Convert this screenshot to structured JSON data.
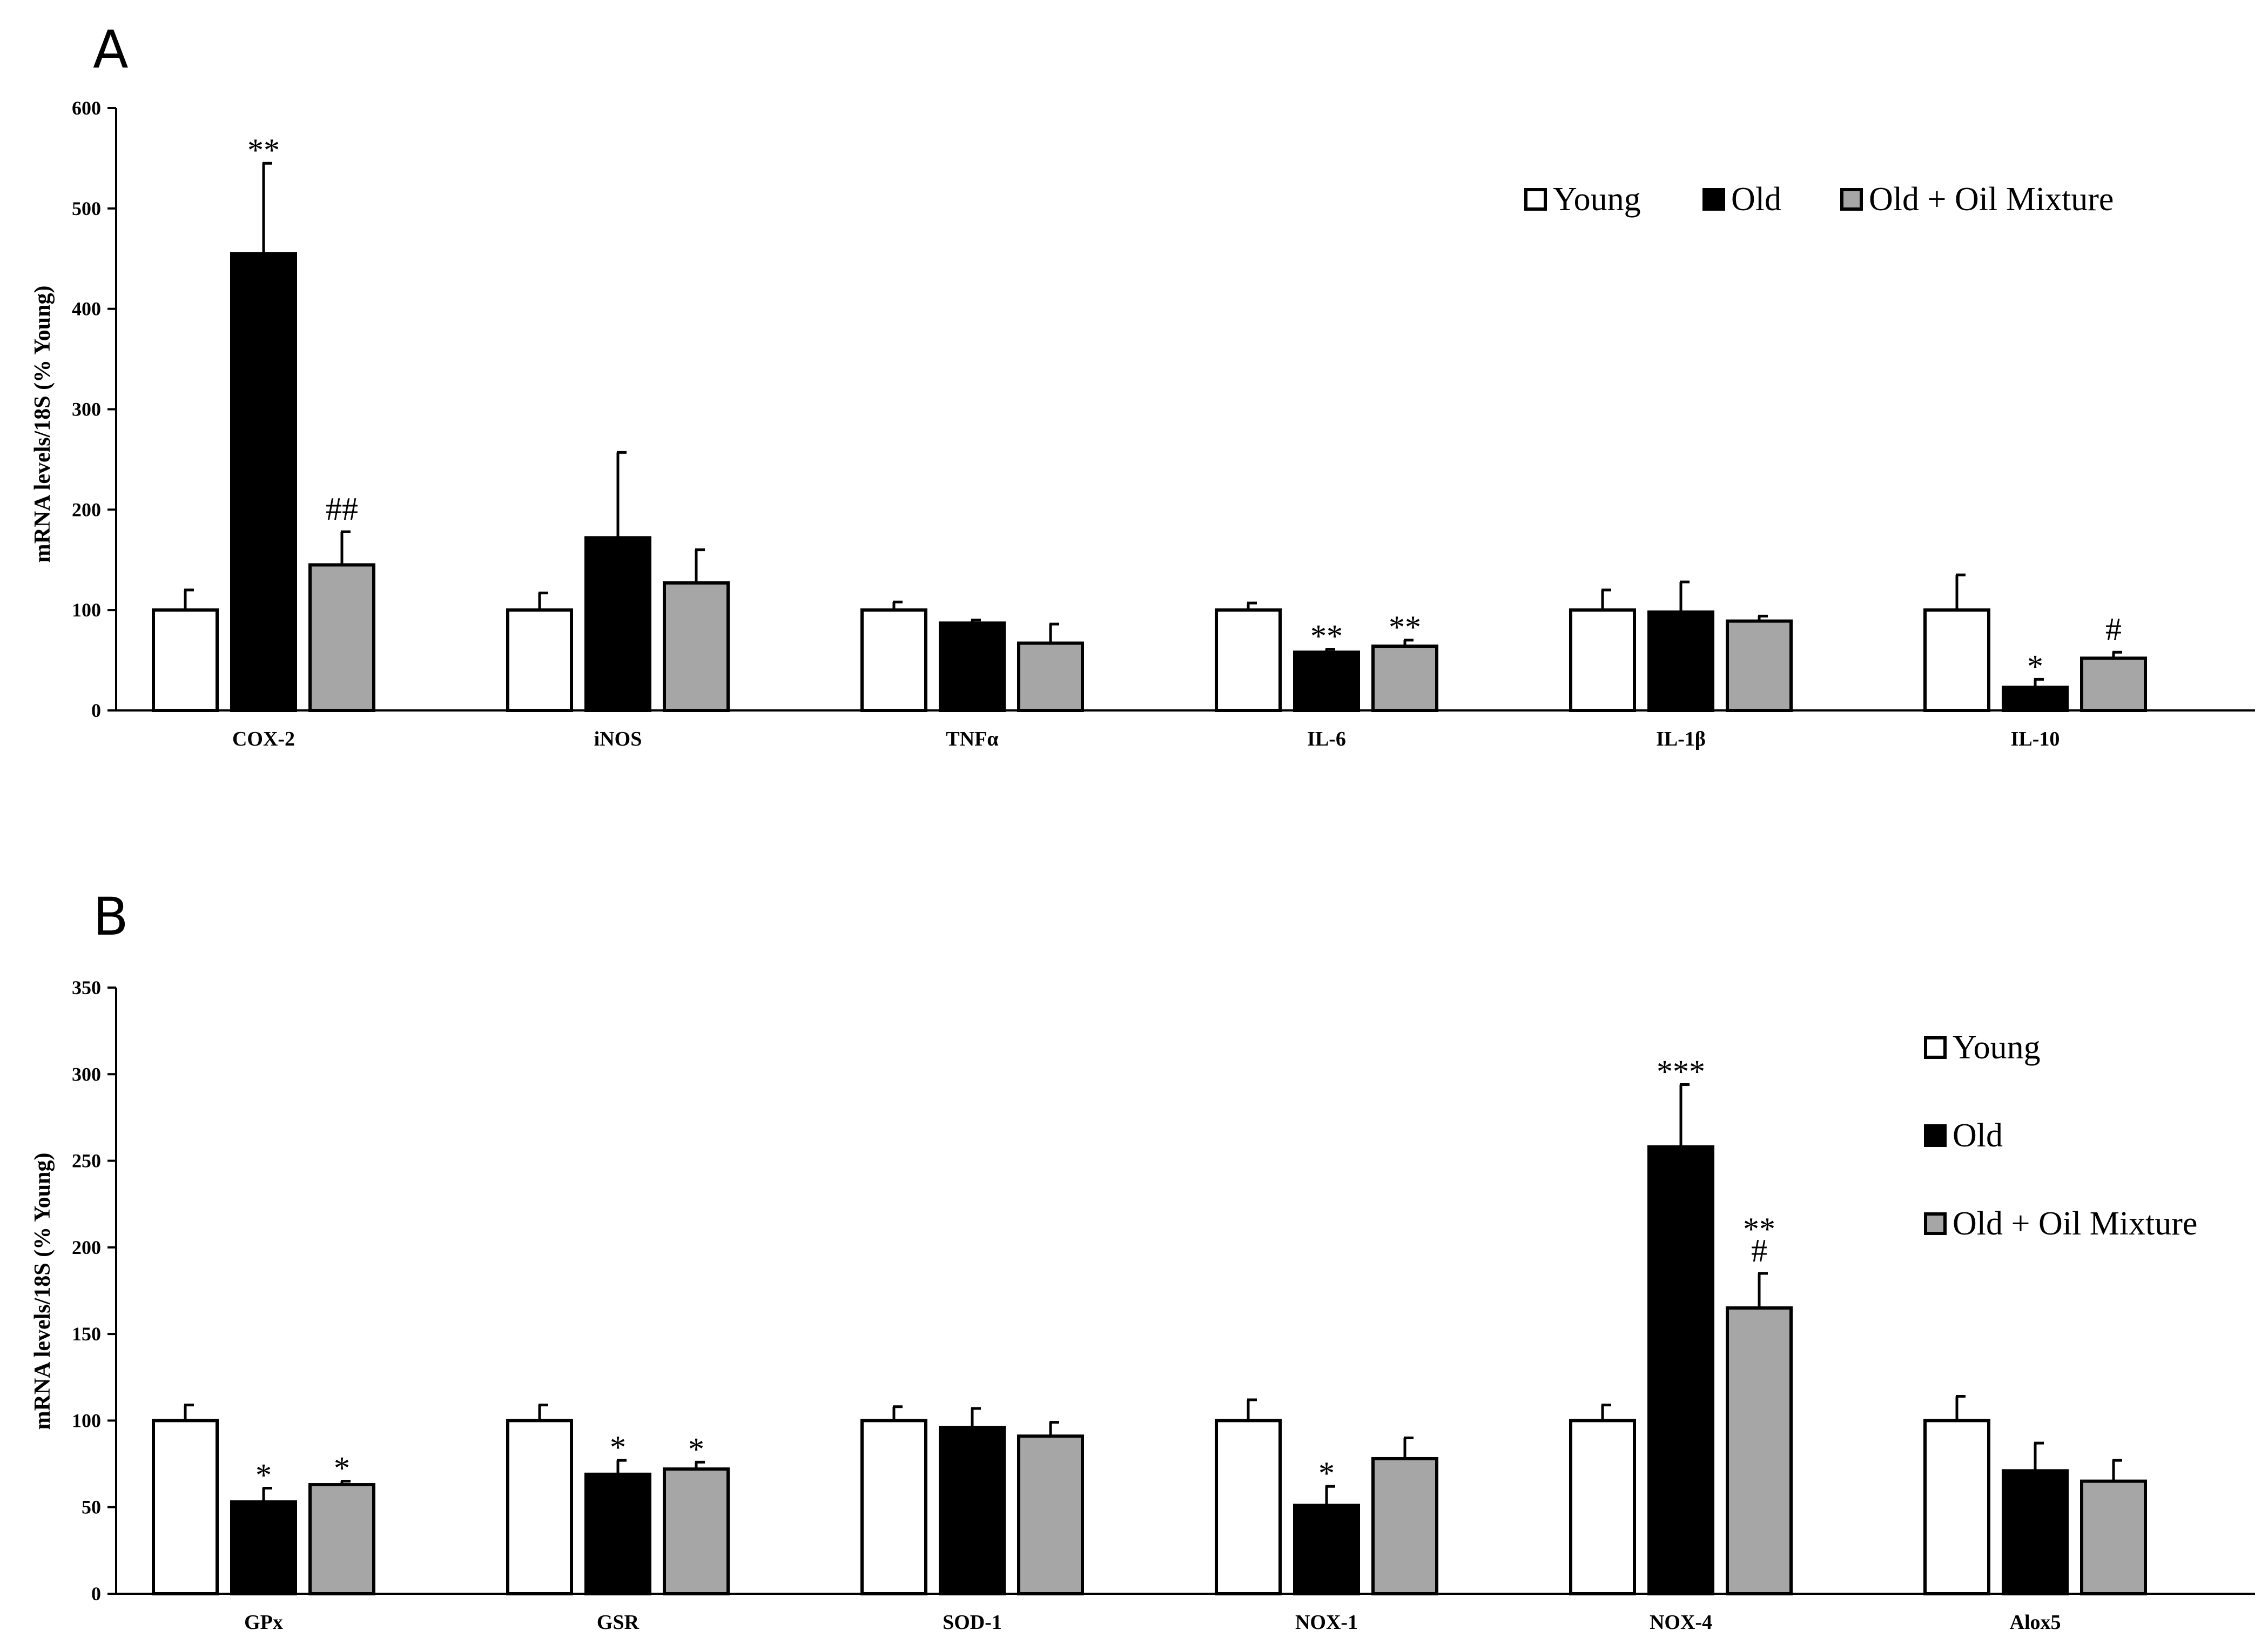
{
  "chart_data": [
    {
      "type": "bar",
      "panel": "A",
      "title": "",
      "xlabel": "",
      "ylabel": "mRNA levels/18S (% Young)",
      "ylim": [
        0,
        600
      ],
      "yticks": [
        0,
        100,
        200,
        300,
        400,
        500,
        600
      ],
      "legend_position": "top-right",
      "legend_layout": "horizontal",
      "categories": [
        "COX-2",
        "iNOS",
        "TNFα",
        "IL-6",
        "IL-1β",
        "IL-10"
      ],
      "series": [
        {
          "name": "Young",
          "color": "#ffffff",
          "values": [
            100,
            100,
            100,
            100,
            100,
            100
          ],
          "errors": [
            20,
            17,
            8,
            7,
            20,
            35
          ],
          "annotations": [
            "",
            "",
            "",
            "",
            "",
            ""
          ]
        },
        {
          "name": "Old",
          "color": "#000000",
          "values": [
            455,
            172,
            87,
            58,
            98,
            23
          ],
          "errors": [
            90,
            85,
            3,
            3,
            30,
            8
          ],
          "annotations": [
            "**",
            "",
            "",
            "**",
            "",
            "*"
          ]
        },
        {
          "name": "Old + Oil Mixture",
          "color": "#a6a6a6",
          "values": [
            145,
            127,
            67,
            64,
            89,
            52
          ],
          "errors": [
            33,
            33,
            19,
            6,
            5,
            6
          ],
          "annotations": [
            "##",
            "",
            "",
            "**",
            "",
            "#"
          ]
        }
      ]
    },
    {
      "type": "bar",
      "panel": "B",
      "title": "",
      "xlabel": "",
      "ylabel": "mRNA levels/18S (% Young)",
      "ylim": [
        0,
        350
      ],
      "yticks": [
        0,
        50,
        100,
        150,
        200,
        250,
        300,
        350
      ],
      "legend_position": "top-right",
      "legend_layout": "vertical",
      "categories": [
        "GPx",
        "GSR",
        "SOD-1",
        "NOX-1",
        "NOX-4",
        "Alox5"
      ],
      "series": [
        {
          "name": "Young",
          "color": "#ffffff",
          "values": [
            100,
            100,
            100,
            100,
            100,
            100
          ],
          "errors": [
            9,
            9,
            8,
            12,
            9,
            14
          ],
          "annotations": [
            "",
            "",
            "",
            "",
            "",
            ""
          ]
        },
        {
          "name": "Old",
          "color": "#000000",
          "values": [
            53,
            69,
            96,
            51,
            258,
            71
          ],
          "errors": [
            8,
            8,
            11,
            11,
            36,
            16
          ],
          "annotations": [
            "*",
            "*",
            "",
            "*",
            "***",
            ""
          ]
        },
        {
          "name": "Old + Oil Mixture",
          "color": "#a6a6a6",
          "values": [
            63,
            72,
            91,
            78,
            165,
            65
          ],
          "errors": [
            2,
            4,
            8,
            12,
            20,
            12
          ],
          "annotations": [
            "*",
            "*",
            "",
            "",
            "**\n#",
            ""
          ]
        }
      ]
    }
  ]
}
